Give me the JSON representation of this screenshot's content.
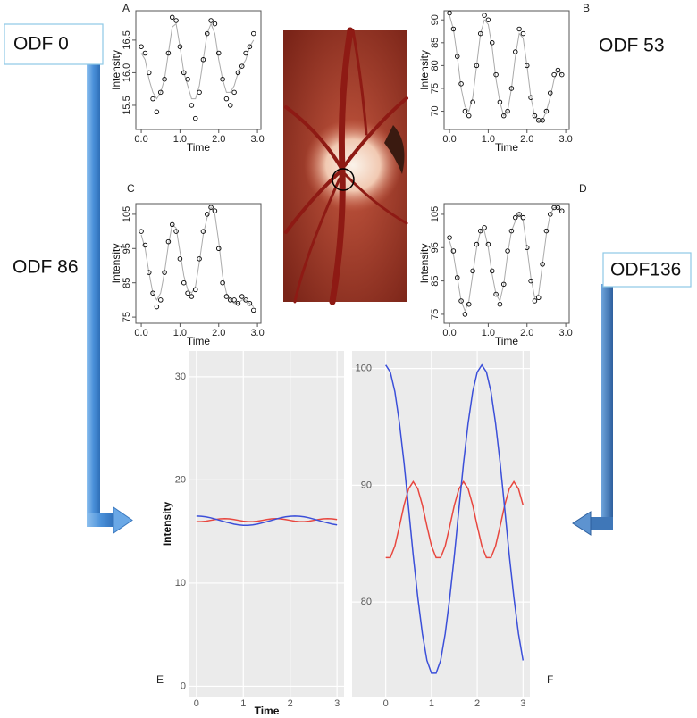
{
  "labels": [
    "ODF 0",
    "ODF 53",
    "ODF 86",
    "ODF136"
  ],
  "chart_data": [
    {
      "type": "scatter",
      "panel_label": "A",
      "x_label": "Time",
      "y_label": "Intensity",
      "x": [
        0,
        0.1,
        0.2,
        0.3,
        0.4,
        0.5,
        0.6,
        0.7,
        0.8,
        0.9,
        1,
        1.1,
        1.2,
        1.3,
        1.4,
        1.5,
        1.6,
        1.7,
        1.8,
        1.9,
        2,
        2.1,
        2.2,
        2.3,
        2.4,
        2.5,
        2.6,
        2.7,
        2.8,
        2.9
      ],
      "series": [
        {
          "type": "scatter",
          "color": "#000000",
          "values": [
            16.4,
            16.3,
            16.0,
            15.6,
            15.4,
            15.7,
            15.9,
            16.3,
            16.85,
            16.8,
            16.4,
            16.0,
            15.9,
            15.5,
            15.3,
            15.7,
            16.2,
            16.6,
            16.8,
            16.75,
            16.3,
            15.9,
            15.6,
            15.5,
            15.7,
            16.0,
            16.1,
            16.3,
            16.4,
            16.6
          ]
        },
        {
          "type": "line",
          "color": "#aaaaaa",
          "values": [
            16.3,
            16.2,
            15.9,
            15.7,
            15.6,
            15.7,
            15.9,
            16.3,
            16.7,
            16.75,
            16.4,
            16.0,
            15.8,
            15.6,
            15.6,
            15.8,
            16.2,
            16.6,
            16.75,
            16.6,
            16.2,
            15.9,
            15.7,
            15.7,
            15.8,
            16.0,
            16.1,
            16.2,
            16.4,
            16.5
          ]
        }
      ],
      "xlim": [
        -0.14,
        3.09
      ],
      "ylim": [
        15.13,
        16.95
      ],
      "xticks": [
        {
          "value": 0,
          "label": "0.0"
        },
        {
          "value": 1,
          "label": "1.0"
        },
        {
          "value": 2,
          "label": "2.0"
        },
        {
          "value": 3,
          "label": "3.0"
        }
      ],
      "yticks": [
        15.5,
        {
          "value": 16,
          "label": "16.0"
        },
        16.5
      ]
    },
    {
      "type": "scatter",
      "panel_label": "B",
      "x_label": "Time",
      "y_label": "Intensity",
      "x": [
        0,
        0.1,
        0.2,
        0.3,
        0.4,
        0.5,
        0.6,
        0.7,
        0.8,
        0.9,
        1,
        1.1,
        1.2,
        1.3,
        1.4,
        1.5,
        1.6,
        1.7,
        1.8,
        1.9,
        2,
        2.1,
        2.2,
        2.3,
        2.4,
        2.5,
        2.6,
        2.7,
        2.8,
        2.9
      ],
      "series": [
        {
          "type": "scatter",
          "color": "#000000",
          "values": [
            91.5,
            88,
            82,
            76,
            70,
            69,
            72,
            80,
            87,
            91,
            90,
            85,
            78,
            72,
            69,
            70,
            75,
            83,
            88,
            87,
            80,
            73,
            69,
            68,
            68,
            70,
            74,
            78,
            79,
            78
          ]
        },
        {
          "type": "line",
          "color": "#aaaaaa",
          "values": [
            91,
            88,
            82,
            75,
            71,
            70,
            73,
            80,
            87,
            90,
            89,
            84,
            77,
            72,
            69,
            70,
            75,
            82,
            87,
            86,
            80,
            73,
            69,
            68,
            68,
            70,
            73,
            77,
            79,
            78
          ]
        }
      ],
      "xlim": [
        -0.14,
        3.09
      ],
      "ylim": [
        66,
        92
      ],
      "xticks": [
        {
          "value": 0,
          "label": "0.0"
        },
        {
          "value": 1,
          "label": "1.0"
        },
        {
          "value": 2,
          "label": "2.0"
        },
        {
          "value": 3,
          "label": "3.0"
        }
      ],
      "yticks": [
        70,
        75,
        80,
        85,
        90
      ]
    },
    {
      "type": "scatter",
      "panel_label": "C",
      "x_label": "Time",
      "y_label": "Intensity",
      "x": [
        0,
        0.1,
        0.2,
        0.3,
        0.4,
        0.5,
        0.6,
        0.7,
        0.8,
        0.9,
        1,
        1.1,
        1.2,
        1.3,
        1.4,
        1.5,
        1.6,
        1.7,
        1.8,
        1.9,
        2,
        2.1,
        2.2,
        2.3,
        2.4,
        2.5,
        2.6,
        2.7,
        2.8,
        2.9
      ],
      "series": [
        {
          "type": "scatter",
          "color": "#000000",
          "values": [
            100,
            96,
            88,
            82,
            78,
            80,
            88,
            97,
            102,
            100,
            92,
            85,
            82,
            81,
            83,
            92,
            100,
            105,
            107,
            106,
            95,
            85,
            81,
            80,
            80,
            79,
            81,
            80,
            79,
            77
          ]
        },
        {
          "type": "line",
          "color": "#aaaaaa",
          "values": [
            99,
            95,
            88,
            82,
            80,
            82,
            88,
            96,
            102,
            101,
            94,
            87,
            83,
            82,
            84,
            91,
            99,
            104,
            107,
            105,
            97,
            87,
            82,
            80,
            79,
            79,
            80,
            80,
            79,
            78
          ]
        }
      ],
      "xlim": [
        -0.14,
        3.09
      ],
      "ylim": [
        73.2,
        108.1
      ],
      "xticks": [
        {
          "value": 0,
          "label": "0.0"
        },
        {
          "value": 1,
          "label": "1.0"
        },
        {
          "value": 2,
          "label": "2.0"
        },
        {
          "value": 3,
          "label": "3.0"
        }
      ],
      "yticks": [
        75,
        85,
        95,
        105
      ]
    },
    {
      "type": "scatter",
      "panel_label": "D",
      "x_label": "Time",
      "y_label": "Intensity",
      "x": [
        0,
        0.1,
        0.2,
        0.3,
        0.4,
        0.5,
        0.6,
        0.7,
        0.8,
        0.9,
        1,
        1.1,
        1.2,
        1.3,
        1.4,
        1.5,
        1.6,
        1.7,
        1.8,
        1.9,
        2,
        2.1,
        2.2,
        2.3,
        2.4,
        2.5,
        2.6,
        2.7,
        2.8,
        2.9
      ],
      "series": [
        {
          "type": "scatter",
          "color": "#000000",
          "values": [
            98,
            94,
            86,
            79,
            75,
            78,
            88,
            96,
            100,
            101,
            96,
            88,
            81,
            78,
            84,
            94,
            100,
            104,
            105,
            104,
            95,
            85,
            79,
            80,
            90,
            100,
            105,
            107,
            107,
            106
          ]
        },
        {
          "type": "line",
          "color": "#aaaaaa",
          "values": [
            97,
            93,
            86,
            79,
            76,
            79,
            87,
            95,
            100,
            100,
            95,
            87,
            81,
            79,
            84,
            93,
            100,
            103,
            105,
            103,
            95,
            86,
            80,
            81,
            90,
            99,
            105,
            107,
            107,
            106
          ]
        }
      ],
      "xlim": [
        -0.14,
        3.09
      ],
      "ylim": [
        72.3,
        108.2
      ],
      "xticks": [
        {
          "value": 0,
          "label": "0.0"
        },
        {
          "value": 1,
          "label": "1.0"
        },
        {
          "value": 2,
          "label": "2.0"
        },
        {
          "value": 3,
          "label": "3.0"
        }
      ],
      "yticks": [
        75,
        85,
        95,
        105
      ]
    },
    {
      "type": "line",
      "panel_label": "E",
      "x_label": "Time",
      "y_label": "Intensity",
      "grid": true,
      "x": [
        0,
        0.1,
        0.2,
        0.3,
        0.4,
        0.5,
        0.6,
        0.7,
        0.8,
        0.9,
        1,
        1.1,
        1.2,
        1.3,
        1.4,
        1.5,
        1.6,
        1.7,
        1.8,
        1.9,
        2,
        2.1,
        2.2,
        2.3,
        2.4,
        2.5,
        2.6,
        2.7,
        2.8,
        2.9,
        3
      ],
      "series": [
        {
          "color": "#e8473f",
          "values": [
            15.96,
            15.96,
            16.0,
            16.08,
            16.16,
            16.23,
            16.25,
            16.23,
            16.16,
            16.08,
            16.0,
            15.96,
            15.96,
            16.0,
            16.08,
            16.16,
            16.23,
            16.25,
            16.23,
            16.16,
            16.08,
            16.0,
            15.96,
            15.96,
            16.0,
            16.08,
            16.16,
            16.23,
            16.25,
            16.23,
            16.16
          ]
        },
        {
          "color": "#3b4fd9",
          "values": [
            16.5,
            16.48,
            16.42,
            16.33,
            16.21,
            16.08,
            15.95,
            15.83,
            15.72,
            15.64,
            15.6,
            15.6,
            15.64,
            15.72,
            15.83,
            15.95,
            16.08,
            16.21,
            16.33,
            16.42,
            16.48,
            16.5,
            16.48,
            16.42,
            16.33,
            16.21,
            16.08,
            15.95,
            15.83,
            15.72,
            15.64
          ]
        }
      ],
      "xlim": [
        -0.15,
        3.15
      ],
      "ylim": [
        -1,
        32.5
      ],
      "xticks": [
        0,
        1,
        2,
        3
      ],
      "yticks": [
        0,
        10,
        20,
        30
      ]
    },
    {
      "type": "line",
      "panel_label": "F",
      "grid": true,
      "x": [
        0,
        0.1,
        0.2,
        0.3,
        0.4,
        0.5,
        0.6,
        0.7,
        0.8,
        0.9,
        1,
        1.1,
        1.2,
        1.3,
        1.4,
        1.5,
        1.6,
        1.7,
        1.8,
        1.9,
        2,
        2.1,
        2.2,
        2.3,
        2.4,
        2.5,
        2.6,
        2.7,
        2.8,
        2.9,
        3
      ],
      "series": [
        {
          "color": "#e8473f",
          "values": [
            83.8,
            83.8,
            84.8,
            86.5,
            88.3,
            89.7,
            90.3,
            89.7,
            88.3,
            86.5,
            84.8,
            83.8,
            83.8,
            84.8,
            86.5,
            88.3,
            89.7,
            90.3,
            89.7,
            88.3,
            86.5,
            84.8,
            83.8,
            83.8,
            84.8,
            86.5,
            88.3,
            89.7,
            90.3,
            89.7,
            88.3
          ]
        },
        {
          "color": "#3b4fd9",
          "values": [
            100.3,
            99.7,
            98.0,
            95.3,
            91.9,
            88.0,
            84.0,
            80.4,
            77.3,
            75.0,
            73.9,
            73.9,
            75.0,
            77.3,
            80.4,
            84.0,
            88.0,
            91.9,
            95.3,
            98.0,
            99.7,
            100.3,
            99.7,
            98.0,
            95.3,
            91.9,
            88.0,
            84.0,
            80.4,
            77.3,
            75.0
          ]
        }
      ],
      "xlim": [
        -0.15,
        3.15
      ],
      "ylim": [
        71.9,
        101.5
      ],
      "xticks": [
        0,
        1,
        2,
        3
      ],
      "yticks": [
        80,
        90,
        100
      ]
    }
  ]
}
